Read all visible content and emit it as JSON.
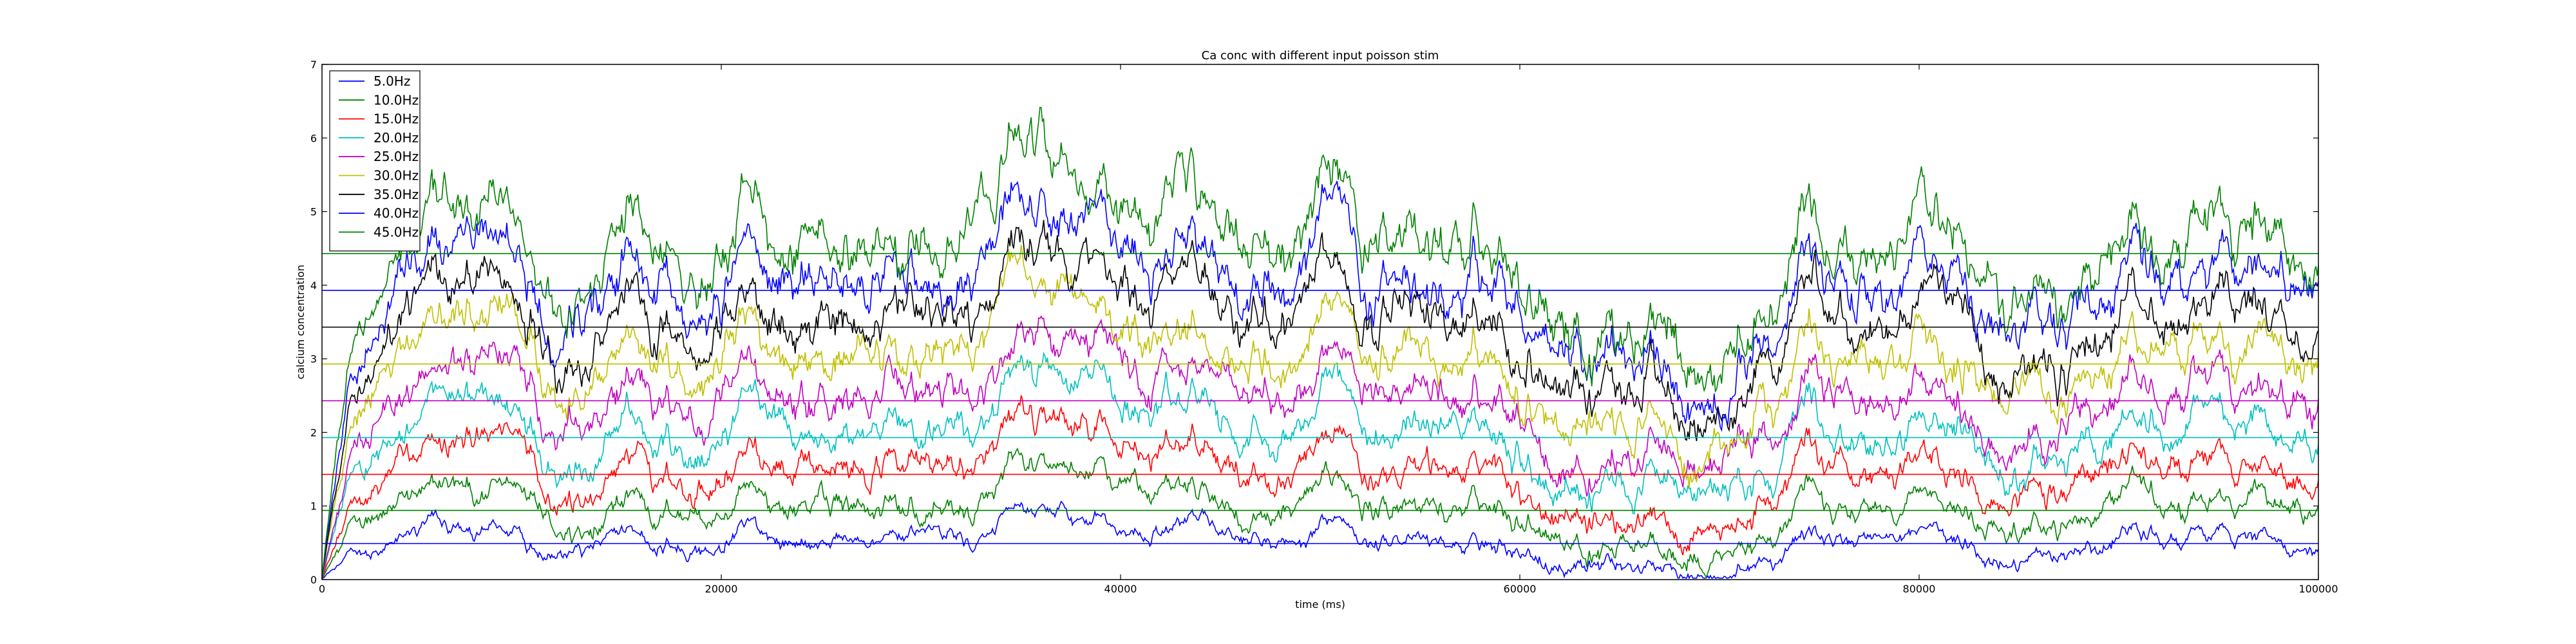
{
  "chart_data": {
    "type": "line",
    "title": "Ca conc with different input poisson stim",
    "xlabel": "time (ms)",
    "ylabel": "calcium concentration",
    "xlim": [
      0,
      100000
    ],
    "ylim": [
      0,
      7
    ],
    "xticks": [
      0,
      20000,
      40000,
      60000,
      80000,
      100000
    ],
    "xtick_labels": [
      "0",
      "20000",
      "40000",
      "60000",
      "80000",
      "100000"
    ],
    "yticks": [
      0,
      1,
      2,
      3,
      4,
      5,
      6,
      7
    ],
    "ytick_labels": [
      "0",
      "1",
      "2",
      "3",
      "4",
      "5",
      "6",
      "7"
    ],
    "grid": false,
    "legend_position": "top-left",
    "series": [
      {
        "name": "5.0Hz",
        "color": "#0000ff",
        "mean": 0.49,
        "amplitude": 0.32
      },
      {
        "name": "10.0Hz",
        "color": "#008000",
        "mean": 0.94,
        "amplitude": 0.45
      },
      {
        "name": "15.0Hz",
        "color": "#ff0000",
        "mean": 1.43,
        "amplitude": 0.55
      },
      {
        "name": "20.0Hz",
        "color": "#00bfbf",
        "mean": 1.93,
        "amplitude": 0.62
      },
      {
        "name": "25.0Hz",
        "color": "#bf00bf",
        "mean": 2.43,
        "amplitude": 0.7
      },
      {
        "name": "30.0Hz",
        "color": "#bfbf00",
        "mean": 2.93,
        "amplitude": 0.78
      },
      {
        "name": "35.0Hz",
        "color": "#000000",
        "mean": 3.43,
        "amplitude": 0.85
      },
      {
        "name": "40.0Hz",
        "color": "#0000ff",
        "mean": 3.93,
        "amplitude": 0.92
      },
      {
        "name": "45.0Hz",
        "color": "#008000",
        "mean": 4.43,
        "amplitude": 1.0
      }
    ]
  }
}
